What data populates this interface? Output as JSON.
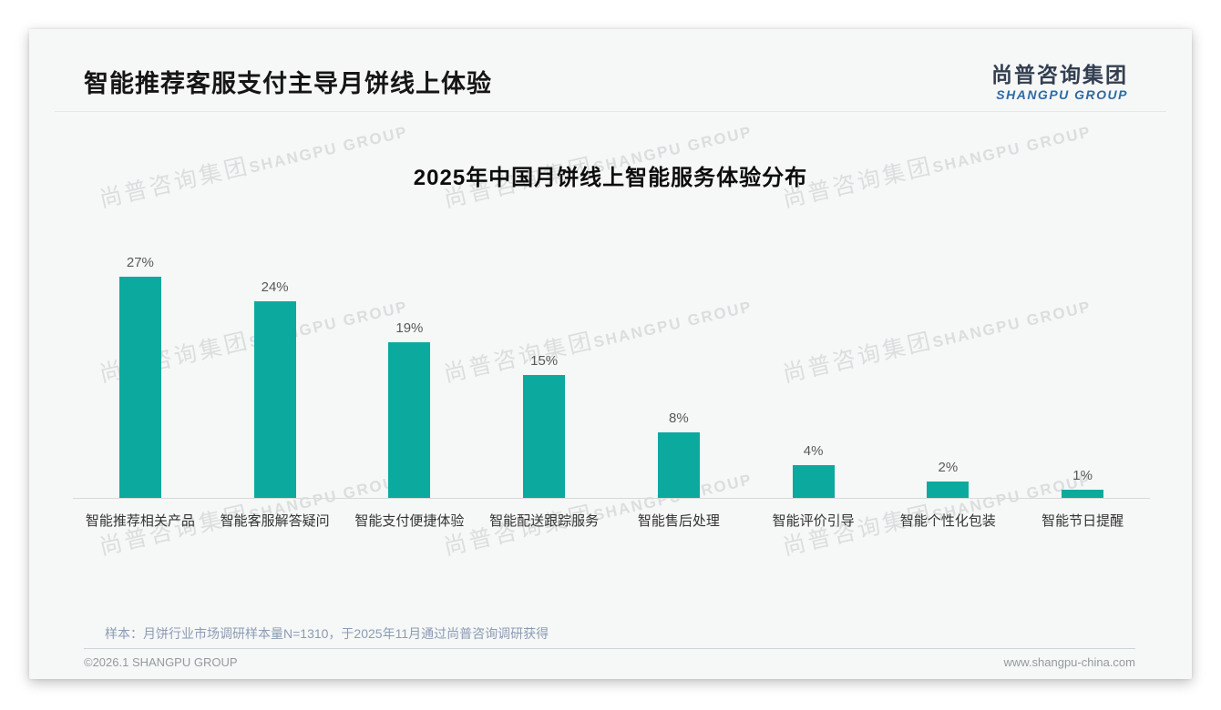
{
  "page": {
    "header_title": "智能推荐客服支付主导月饼线上体验",
    "logo": {
      "zh": "尚普咨询集团",
      "en": "SHANGPU GROUP"
    },
    "watermark": {
      "line1": "尚普咨询集团",
      "line2": "SHANGPU GROUP"
    },
    "source_note": "样本：月饼行业市场调研样本量N=1310，于2025年11月通过尚普咨询调研获得",
    "footer_left": "©2026.1 SHANGPU GROUP",
    "footer_right": "www.shangpu-china.com"
  },
  "colors": {
    "bar": "#0caa9e",
    "logo_navy": "#333f50",
    "logo_blue": "#2d6ba3",
    "value_label": "#595959",
    "category_label": "#333333",
    "source_note": "#8b9cb3"
  },
  "chart_data": {
    "type": "bar",
    "title": "2025年中国月饼线上智能服务体验分布",
    "categories": [
      "智能推荐相关产品",
      "智能客服解答疑问",
      "智能支付便捷体验",
      "智能配送跟踪服务",
      "智能售后处理",
      "智能评价引导",
      "智能个性化包装",
      "智能节日提醒"
    ],
    "values": [
      27,
      24,
      19,
      15,
      8,
      4,
      2,
      1
    ],
    "value_labels": [
      "27%",
      "24%",
      "19%",
      "15%",
      "8%",
      "4%",
      "2%",
      "1%"
    ],
    "unit": "%",
    "bar_color": "#0caa9e",
    "xlabel": "",
    "ylabel": "",
    "grid": false,
    "legend": false
  }
}
